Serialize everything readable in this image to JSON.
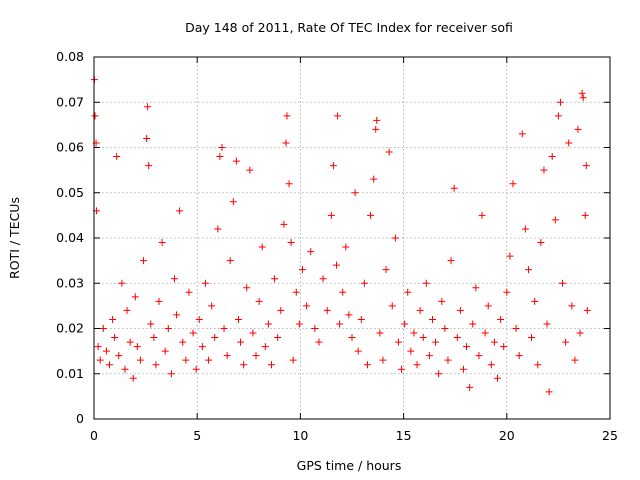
{
  "chart_data": {
    "type": "scatter",
    "title": "Day 148 of 2011, Rate Of TEC Index for receiver sofi",
    "xlabel": "GPS time / hours",
    "ylabel": "ROTI / TECUs",
    "xlim": [
      0,
      25
    ],
    "ylim": [
      0,
      0.08
    ],
    "x_ticks": [
      "0",
      "5",
      "10",
      "15",
      "20",
      "25"
    ],
    "y_ticks": [
      "0",
      "0.01",
      "0.02",
      "0.03",
      "0.04",
      "0.05",
      "0.06",
      "0.07",
      "0.08"
    ],
    "grid": true,
    "marker": "+",
    "color": "#ff0000",
    "series": [
      {
        "points": [
          [
            0.02,
            0.075
          ],
          [
            0.05,
            0.067
          ],
          [
            0.1,
            0.061
          ],
          [
            0.12,
            0.046
          ],
          [
            0.2,
            0.016
          ],
          [
            0.3,
            0.013
          ],
          [
            0.45,
            0.02
          ],
          [
            0.6,
            0.015
          ],
          [
            0.75,
            0.012
          ],
          [
            0.9,
            0.022
          ],
          [
            1.0,
            0.018
          ],
          [
            1.1,
            0.058
          ],
          [
            1.2,
            0.014
          ],
          [
            1.35,
            0.03
          ],
          [
            1.5,
            0.011
          ],
          [
            1.6,
            0.024
          ],
          [
            1.75,
            0.017
          ],
          [
            1.9,
            0.009
          ],
          [
            2.0,
            0.027
          ],
          [
            2.1,
            0.016
          ],
          [
            2.25,
            0.013
          ],
          [
            2.4,
            0.035
          ],
          [
            2.55,
            0.062
          ],
          [
            2.6,
            0.069
          ],
          [
            2.65,
            0.056
          ],
          [
            2.75,
            0.021
          ],
          [
            2.9,
            0.018
          ],
          [
            3.0,
            0.012
          ],
          [
            3.15,
            0.026
          ],
          [
            3.3,
            0.039
          ],
          [
            3.45,
            0.015
          ],
          [
            3.6,
            0.02
          ],
          [
            3.75,
            0.01
          ],
          [
            3.9,
            0.031
          ],
          [
            4.0,
            0.023
          ],
          [
            4.15,
            0.046
          ],
          [
            4.3,
            0.017
          ],
          [
            4.45,
            0.013
          ],
          [
            4.6,
            0.028
          ],
          [
            4.8,
            0.019
          ],
          [
            4.95,
            0.011
          ],
          [
            5.1,
            0.022
          ],
          [
            5.25,
            0.016
          ],
          [
            5.4,
            0.03
          ],
          [
            5.55,
            0.013
          ],
          [
            5.7,
            0.025
          ],
          [
            5.85,
            0.018
          ],
          [
            6.0,
            0.042
          ],
          [
            6.1,
            0.058
          ],
          [
            6.2,
            0.06
          ],
          [
            6.3,
            0.02
          ],
          [
            6.45,
            0.014
          ],
          [
            6.6,
            0.035
          ],
          [
            6.75,
            0.048
          ],
          [
            6.9,
            0.057
          ],
          [
            7.0,
            0.022
          ],
          [
            7.1,
            0.017
          ],
          [
            7.25,
            0.012
          ],
          [
            7.4,
            0.029
          ],
          [
            7.55,
            0.055
          ],
          [
            7.7,
            0.019
          ],
          [
            7.85,
            0.014
          ],
          [
            8.0,
            0.026
          ],
          [
            8.15,
            0.038
          ],
          [
            8.3,
            0.016
          ],
          [
            8.45,
            0.021
          ],
          [
            8.6,
            0.012
          ],
          [
            8.75,
            0.031
          ],
          [
            8.9,
            0.018
          ],
          [
            9.05,
            0.024
          ],
          [
            9.2,
            0.043
          ],
          [
            9.3,
            0.061
          ],
          [
            9.35,
            0.067
          ],
          [
            9.45,
            0.052
          ],
          [
            9.55,
            0.039
          ],
          [
            9.65,
            0.013
          ],
          [
            9.8,
            0.028
          ],
          [
            9.95,
            0.021
          ],
          [
            10.1,
            0.033
          ],
          [
            10.3,
            0.025
          ],
          [
            10.5,
            0.037
          ],
          [
            10.7,
            0.02
          ],
          [
            10.9,
            0.017
          ],
          [
            11.1,
            0.031
          ],
          [
            11.3,
            0.024
          ],
          [
            11.5,
            0.045
          ],
          [
            11.6,
            0.056
          ],
          [
            11.75,
            0.034
          ],
          [
            11.8,
            0.067
          ],
          [
            11.9,
            0.021
          ],
          [
            12.05,
            0.028
          ],
          [
            12.2,
            0.038
          ],
          [
            12.35,
            0.023
          ],
          [
            12.5,
            0.018
          ],
          [
            12.65,
            0.05
          ],
          [
            12.8,
            0.015
          ],
          [
            12.95,
            0.022
          ],
          [
            13.1,
            0.03
          ],
          [
            13.25,
            0.012
          ],
          [
            13.4,
            0.045
          ],
          [
            13.55,
            0.053
          ],
          [
            13.65,
            0.064
          ],
          [
            13.7,
            0.066
          ],
          [
            13.85,
            0.019
          ],
          [
            14.0,
            0.013
          ],
          [
            14.15,
            0.033
          ],
          [
            14.3,
            0.059
          ],
          [
            14.45,
            0.025
          ],
          [
            14.6,
            0.04
          ],
          [
            14.75,
            0.017
          ],
          [
            14.9,
            0.011
          ],
          [
            15.05,
            0.021
          ],
          [
            15.2,
            0.028
          ],
          [
            15.35,
            0.015
          ],
          [
            15.5,
            0.019
          ],
          [
            15.65,
            0.012
          ],
          [
            15.8,
            0.024
          ],
          [
            15.95,
            0.018
          ],
          [
            16.1,
            0.03
          ],
          [
            16.25,
            0.014
          ],
          [
            16.4,
            0.022
          ],
          [
            16.55,
            0.017
          ],
          [
            16.7,
            0.01
          ],
          [
            16.85,
            0.026
          ],
          [
            17.0,
            0.02
          ],
          [
            17.15,
            0.013
          ],
          [
            17.3,
            0.035
          ],
          [
            17.45,
            0.051
          ],
          [
            17.6,
            0.018
          ],
          [
            17.75,
            0.024
          ],
          [
            17.9,
            0.011
          ],
          [
            18.05,
            0.016
          ],
          [
            18.2,
            0.007
          ],
          [
            18.35,
            0.021
          ],
          [
            18.5,
            0.029
          ],
          [
            18.65,
            0.014
          ],
          [
            18.8,
            0.045
          ],
          [
            18.95,
            0.019
          ],
          [
            19.1,
            0.025
          ],
          [
            19.25,
            0.012
          ],
          [
            19.4,
            0.017
          ],
          [
            19.55,
            0.009
          ],
          [
            19.7,
            0.022
          ],
          [
            19.85,
            0.016
          ],
          [
            20.0,
            0.028
          ],
          [
            20.15,
            0.036
          ],
          [
            20.3,
            0.052
          ],
          [
            20.45,
            0.02
          ],
          [
            20.6,
            0.014
          ],
          [
            20.75,
            0.063
          ],
          [
            20.9,
            0.042
          ],
          [
            21.05,
            0.033
          ],
          [
            21.2,
            0.018
          ],
          [
            21.35,
            0.026
          ],
          [
            21.5,
            0.012
          ],
          [
            21.65,
            0.039
          ],
          [
            21.8,
            0.055
          ],
          [
            21.95,
            0.021
          ],
          [
            22.05,
            0.006
          ],
          [
            22.2,
            0.058
          ],
          [
            22.35,
            0.044
          ],
          [
            22.5,
            0.067
          ],
          [
            22.6,
            0.07
          ],
          [
            22.7,
            0.03
          ],
          [
            22.85,
            0.017
          ],
          [
            23.0,
            0.061
          ],
          [
            23.15,
            0.025
          ],
          [
            23.3,
            0.013
          ],
          [
            23.45,
            0.064
          ],
          [
            23.55,
            0.019
          ],
          [
            23.65,
            0.072
          ],
          [
            23.7,
            0.071
          ],
          [
            23.8,
            0.045
          ],
          [
            23.85,
            0.056
          ],
          [
            23.9,
            0.024
          ]
        ]
      }
    ]
  }
}
